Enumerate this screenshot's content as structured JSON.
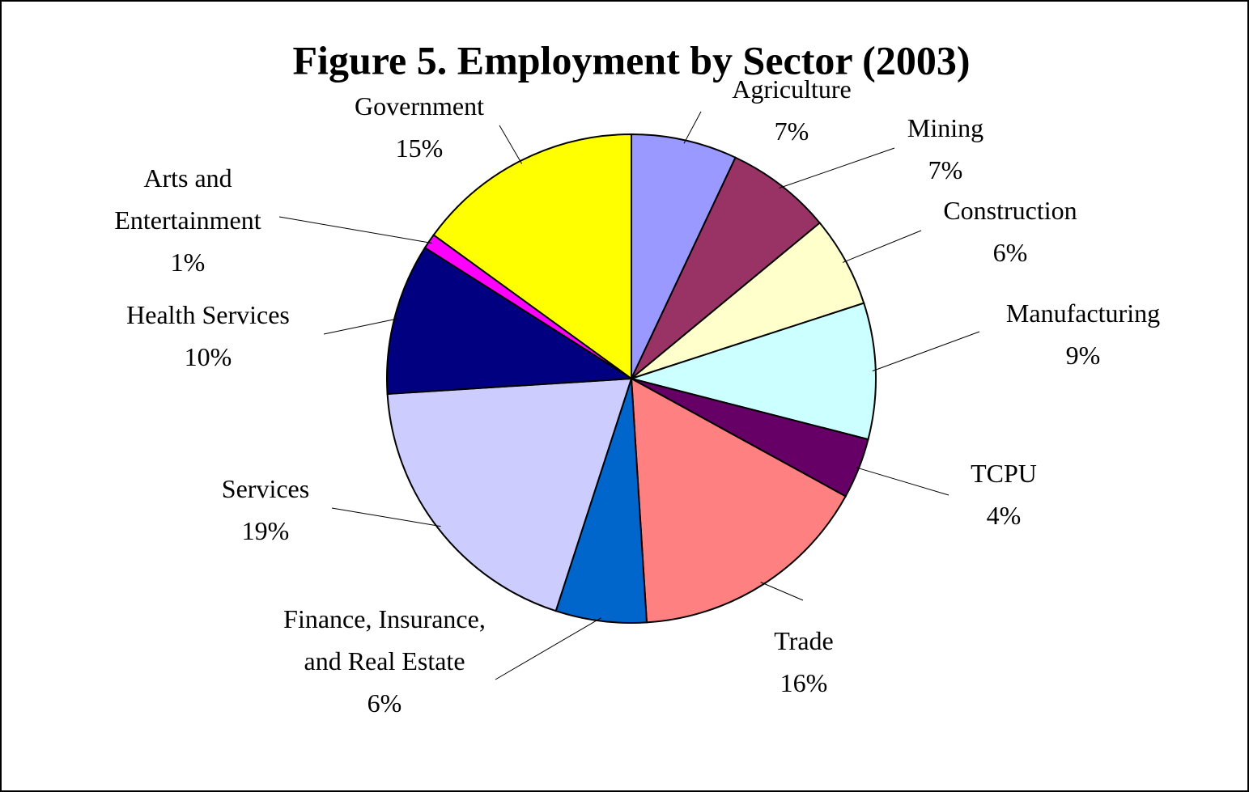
{
  "chart_data": {
    "type": "pie",
    "title": "Figure 5. Employment by Sector (2003)",
    "categories": [
      "Agriculture",
      "Mining",
      "Construction",
      "Manufacturing",
      "TCPU",
      "Trade",
      "Finance, Insurance, and Real Estate",
      "Services",
      "Health Services",
      "Arts and Entertainment",
      "Government"
    ],
    "values": [
      7,
      7,
      6,
      9,
      4,
      16,
      6,
      19,
      10,
      1,
      15
    ],
    "value_labels": [
      "7%",
      "7%",
      "6%",
      "9%",
      "4%",
      "16%",
      "6%",
      "19%",
      "10%",
      "1%",
      "15%"
    ],
    "colors": [
      "#9999ff",
      "#993366",
      "#ffffcc",
      "#ccffff",
      "#660066",
      "#ff8080",
      "#0066cc",
      "#ccccff",
      "#000080",
      "#ff00ff",
      "#ffff00"
    ]
  }
}
